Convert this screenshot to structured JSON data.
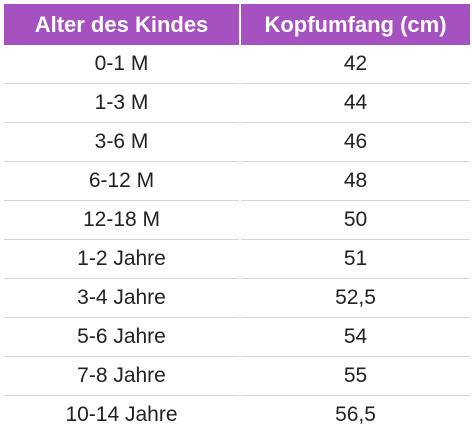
{
  "colors": {
    "header_background": "#a552c0",
    "header_text": "#ffffff",
    "row_divider": "#d4d4d4",
    "body_text": "#222222"
  },
  "table": {
    "headers": [
      "Alter des Kindes",
      "Kopfumfang (cm)"
    ],
    "rows": [
      [
        "0-1 M",
        "42"
      ],
      [
        "1-3 M",
        "44"
      ],
      [
        "3-6 M",
        "46"
      ],
      [
        "6-12 M",
        "48"
      ],
      [
        "12-18 M",
        "50"
      ],
      [
        "1-2 Jahre",
        "51"
      ],
      [
        "3-4 Jahre",
        "52,5"
      ],
      [
        "5-6 Jahre",
        "54"
      ],
      [
        "7-8 Jahre",
        "55"
      ],
      [
        "10-14 Jahre",
        "56,5"
      ]
    ]
  }
}
